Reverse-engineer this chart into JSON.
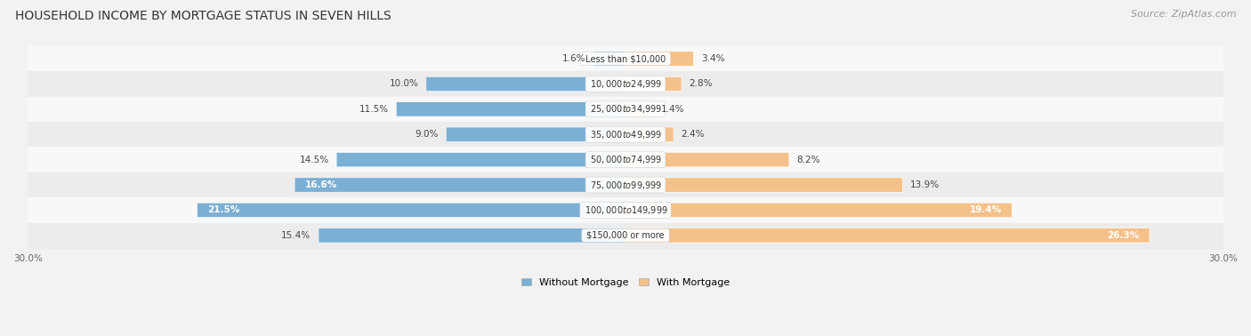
{
  "title": "HOUSEHOLD INCOME BY MORTGAGE STATUS IN SEVEN HILLS",
  "source": "Source: ZipAtlas.com",
  "categories": [
    "Less than $10,000",
    "$10,000 to $24,999",
    "$25,000 to $34,999",
    "$35,000 to $49,999",
    "$50,000 to $74,999",
    "$75,000 to $99,999",
    "$100,000 to $149,999",
    "$150,000 or more"
  ],
  "without_mortgage": [
    1.6,
    10.0,
    11.5,
    9.0,
    14.5,
    16.6,
    21.5,
    15.4
  ],
  "with_mortgage": [
    3.4,
    2.8,
    1.4,
    2.4,
    8.2,
    13.9,
    19.4,
    26.3
  ],
  "color_without": "#7bafd4",
  "color_with": "#f5c18a",
  "axis_limit": 30.0,
  "bg_color": "#f2f2f2",
  "row_color_even": "#f8f8f8",
  "row_color_odd": "#ececec",
  "legend_label_without": "Without Mortgage",
  "legend_label_with": "With Mortgage",
  "title_fontsize": 10,
  "source_fontsize": 8,
  "label_fontsize": 7.5,
  "cat_fontsize": 7.0,
  "axis_label_fontsize": 7.5
}
